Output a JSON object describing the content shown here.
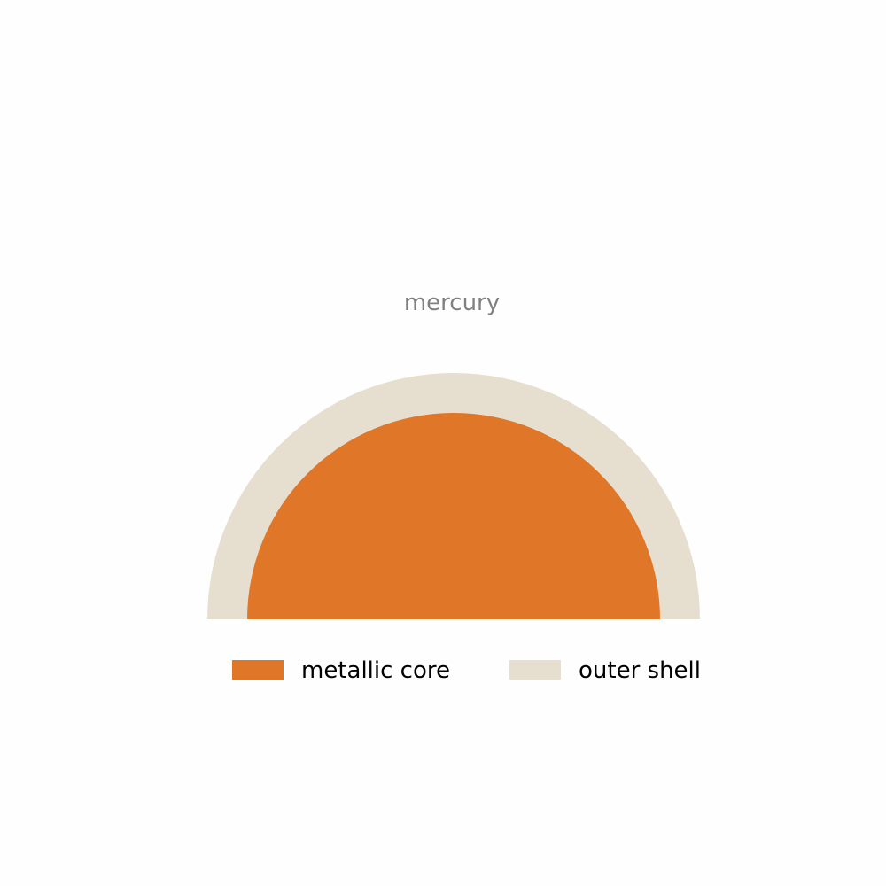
{
  "diagram": {
    "title": "mercury",
    "layers": [
      {
        "key": "shell",
        "label": "outer shell",
        "color": "#e6dfd0"
      },
      {
        "key": "core",
        "label": "metallic core",
        "color": "#e07627"
      }
    ],
    "legend_order": [
      "core",
      "shell"
    ],
    "colors": {
      "title": "#808080",
      "legend_text": "#000000",
      "background": "#fefefe"
    }
  }
}
